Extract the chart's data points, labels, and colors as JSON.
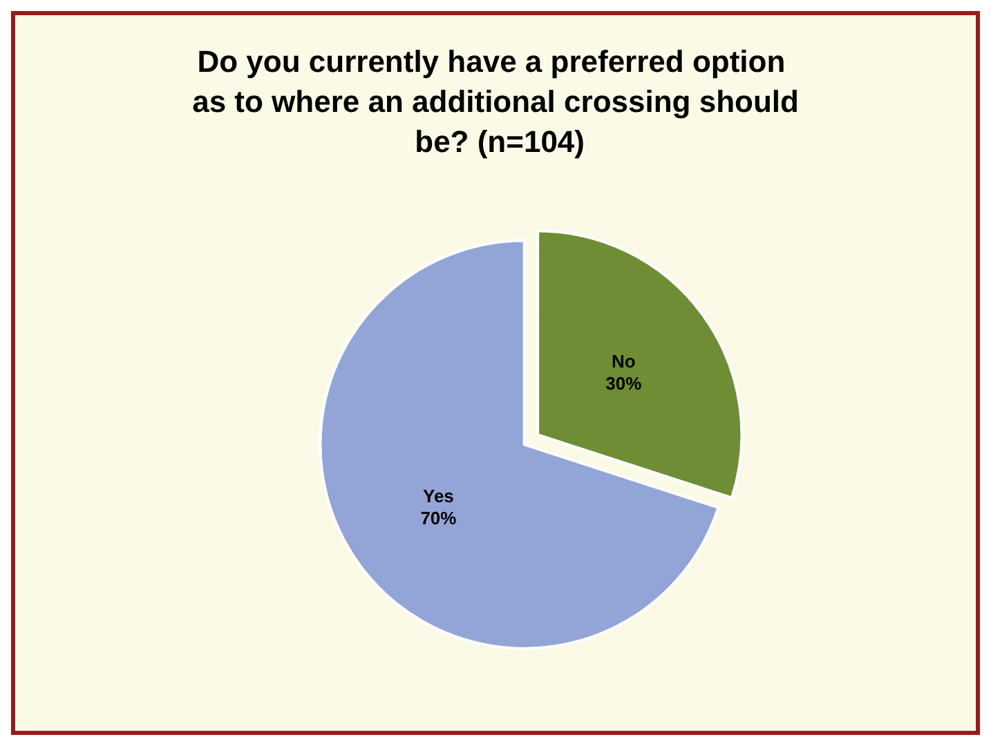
{
  "chart_data": {
    "type": "pie",
    "title": "Do you currently have a preferred option as to where an additional crossing should be? (n=104)",
    "categories": [
      "No",
      "Yes"
    ],
    "values": [
      30,
      70
    ],
    "colors": [
      "#6f8d34",
      "#93a5d6"
    ],
    "value_labels": [
      "30%",
      "70%"
    ],
    "legend": false
  }
}
